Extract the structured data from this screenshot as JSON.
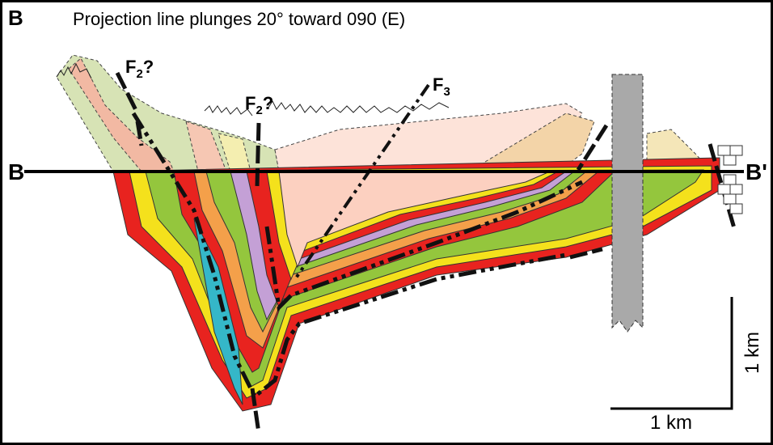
{
  "header": {
    "panel": "B",
    "title": "Projection line plunges 20° toward 090 (E)"
  },
  "labels": [
    {
      "letter": "F",
      "sub": "2",
      "suffix": "?"
    },
    {
      "letter": "F",
      "sub": "2",
      "suffix": "?"
    },
    {
      "letter": "F",
      "sub": "3",
      "suffix": ""
    }
  ],
  "section": {
    "start": "B",
    "end": "B'"
  },
  "scale": {
    "vertical": "1 km",
    "horizontal": "1 km"
  }
}
